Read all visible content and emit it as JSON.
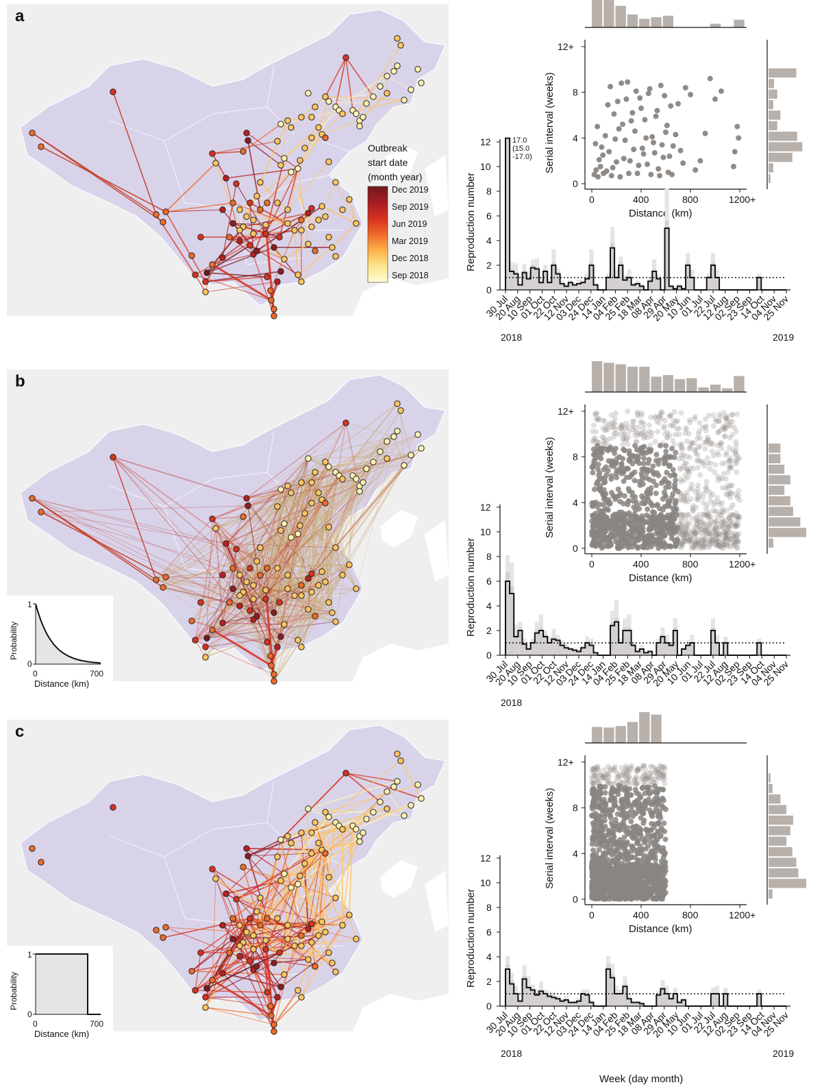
{
  "figure": {
    "bottom_xlabel": "Week (day month)",
    "colors": {
      "land": "#f0eff0",
      "china": "#d9d3ea",
      "histogram": "#b7b0ab",
      "scatter": "#8a8581",
      "step_line": "#111111"
    },
    "colorbar": {
      "title_lines": [
        "Outbreak",
        "start date",
        "(month year)"
      ],
      "labels": [
        "Dec 2019",
        "Sep 2019",
        "Jun 2019",
        "Mar 2019",
        "Dec 2018",
        "Sep 2018"
      ],
      "colors": [
        "#6e1a1f",
        "#a61c23",
        "#d7301f",
        "#ef6a28",
        "#fdb24a",
        "#fde68f",
        "#fffbd5"
      ]
    }
  },
  "chart_data": [
    {
      "panel": "a",
      "type": "map",
      "description_label": "a",
      "kernel": null,
      "link_density": "sparse"
    },
    {
      "panel": "a",
      "type": "scatter",
      "xlabel": "Distance (km)",
      "ylabel": "Serial interval (weeks)",
      "xticks": [
        "0",
        "400",
        "800",
        "1200+"
      ],
      "yticks": [
        "0",
        "4",
        "8",
        "12+"
      ],
      "xlim": [
        0,
        1250
      ],
      "ylim": [
        0,
        12
      ],
      "top_hist": [
        1.0,
        0.92,
        0.7,
        0.42,
        0.28,
        0.33,
        0.38,
        0.0,
        0.0,
        0.0,
        0.12,
        0.0,
        0.25
      ],
      "side_hist": [
        0.05,
        0.12,
        0.6,
        0.85,
        0.72,
        0.22,
        0.3,
        0.12,
        0.22,
        0.14,
        0.7,
        0.0,
        0.0
      ],
      "points": [
        [
          20,
          0.8
        ],
        [
          35,
          1.2
        ],
        [
          50,
          0.6
        ],
        [
          60,
          2.1
        ],
        [
          70,
          1.5
        ],
        [
          80,
          3.2
        ],
        [
          95,
          0.9
        ],
        [
          110,
          4.2
        ],
        [
          120,
          1.1
        ],
        [
          140,
          2.8
        ],
        [
          160,
          0.7
        ],
        [
          180,
          6.1
        ],
        [
          200,
          1.9
        ],
        [
          220,
          4.8
        ],
        [
          240,
          8.8
        ],
        [
          260,
          2.2
        ],
        [
          280,
          7.4
        ],
        [
          300,
          0.9
        ],
        [
          320,
          5.5
        ],
        [
          340,
          3.0
        ],
        [
          360,
          8.1
        ],
        [
          380,
          1.6
        ],
        [
          400,
          6.6
        ],
        [
          420,
          2.6
        ],
        [
          440,
          4.0
        ],
        [
          460,
          7.9
        ],
        [
          480,
          0.8
        ],
        [
          500,
          3.6
        ],
        [
          520,
          5.9
        ],
        [
          540,
          1.3
        ],
        [
          560,
          8.6
        ],
        [
          580,
          2.3
        ],
        [
          600,
          4.5
        ],
        [
          620,
          1.0
        ],
        [
          640,
          6.8
        ],
        [
          660,
          3.3
        ],
        [
          700,
          7.0
        ],
        [
          740,
          1.8
        ],
        [
          800,
          7.8
        ],
        [
          880,
          2.0
        ],
        [
          920,
          4.4
        ],
        [
          960,
          9.2
        ],
        [
          1000,
          7.4
        ],
        [
          1160,
          2.8
        ],
        [
          1190,
          4.0
        ],
        [
          30,
          3.5
        ],
        [
          45,
          5.0
        ],
        [
          90,
          2.5
        ],
        [
          130,
          6.9
        ],
        [
          150,
          8.5
        ],
        [
          170,
          1.4
        ],
        [
          190,
          3.9
        ],
        [
          210,
          7.2
        ],
        [
          230,
          0.6
        ],
        [
          250,
          5.2
        ],
        [
          270,
          3.8
        ],
        [
          290,
          8.9
        ],
        [
          310,
          2.0
        ],
        [
          330,
          6.2
        ],
        [
          350,
          4.6
        ],
        [
          370,
          0.9
        ],
        [
          390,
          7.5
        ],
        [
          410,
          3.1
        ],
        [
          430,
          5.6
        ],
        [
          450,
          1.7
        ],
        [
          470,
          8.3
        ],
        [
          490,
          4.1
        ],
        [
          510,
          2.7
        ],
        [
          530,
          6.4
        ],
        [
          550,
          0.7
        ],
        [
          570,
          3.4
        ],
        [
          590,
          7.7
        ],
        [
          610,
          5.1
        ],
        [
          630,
          2.4
        ],
        [
          650,
          0.8
        ],
        [
          680,
          4.3
        ],
        [
          720,
          2.9
        ],
        [
          760,
          8.4
        ],
        [
          840,
          1.2
        ],
        [
          1050,
          8.1
        ],
        [
          1150,
          1.5
        ],
        [
          1180,
          5.0
        ]
      ],
      "point_density": 1.0
    },
    {
      "panel": "a",
      "type": "step",
      "xlabel": "",
      "ylabel": "Reproduction number",
      "yticks": [
        "0",
        "2",
        "4",
        "6",
        "8",
        "10",
        "12"
      ],
      "ylim": [
        0,
        12.5
      ],
      "reference_line": 1,
      "annotation_lines": [
        "17.0",
        "(15.0",
        "-17.0)"
      ],
      "xtick_labels": [
        "30 Jul",
        "20 Aug",
        "10 Sep",
        "01 Oct",
        "22 Oct",
        "12 Nov",
        "03 Dec",
        "24 Dec",
        "14 Jan",
        "04 Feb",
        "25 Feb",
        "18 Mar",
        "08 Apr",
        "29 Apr",
        "20 May",
        "10 Jun",
        "01 Jul",
        "22 Jul",
        "12 Aug",
        "02 Sep",
        "23 Sep",
        "14 Oct",
        "04 Nov",
        "25 Nov"
      ],
      "year_labels": [
        "2018",
        "2019"
      ],
      "values": [
        12.5,
        1.5,
        1.3,
        0.4,
        1.4,
        0.9,
        1.8,
        1.7,
        0.6,
        1.5,
        0.6,
        2.0,
        1.3,
        0.5,
        0.3,
        0.6,
        0.4,
        0.5,
        0.6,
        0.9,
        2.0,
        0.4,
        0,
        0,
        1.0,
        3.4,
        1.0,
        2.0,
        0.8,
        1.0,
        0.4,
        0.5,
        0.3,
        0,
        0.7,
        1.5,
        0.9,
        0,
        5.0,
        0.3,
        0.1,
        0.3,
        0.1,
        2.0,
        1.0,
        0,
        0,
        0,
        1.0,
        2.0,
        1.0,
        0,
        0,
        0,
        0,
        0,
        0,
        0,
        0,
        0,
        1.0,
        0,
        0,
        0,
        0,
        0,
        0
      ]
    },
    {
      "panel": "b",
      "type": "map",
      "description_label": "b",
      "kernel": "exponential",
      "link_density": "dense"
    },
    {
      "panel": "b",
      "type": "scatter",
      "xlabel": "Distance (km)",
      "ylabel": "Serial interval (weeks)",
      "xticks": [
        "0",
        "400",
        "800",
        "1200+"
      ],
      "yticks": [
        "0",
        "4",
        "8",
        "12+"
      ],
      "xlim": [
        0,
        1250
      ],
      "ylim": [
        0,
        12
      ],
      "top_hist": [
        1.0,
        0.95,
        0.9,
        0.82,
        0.82,
        0.5,
        0.55,
        0.42,
        0.45,
        0.15,
        0.24,
        0.12,
        0.52
      ],
      "side_hist": [
        0.12,
        0.95,
        0.8,
        0.62,
        0.55,
        0.4,
        0.55,
        0.4,
        0.3,
        0.3,
        0.0,
        0.0,
        0.0
      ]
    },
    {
      "panel": "b",
      "type": "step",
      "xlabel": "",
      "ylabel": "Reproduction number",
      "yticks": [
        "0",
        "2",
        "4",
        "6",
        "8",
        "10",
        "12"
      ],
      "ylim": [
        0,
        12.5
      ],
      "reference_line": 1,
      "xtick_labels": [
        "30 Jul",
        "20 Aug",
        "10 Sep",
        "01 Oct",
        "22 Oct",
        "12 Nov",
        "03 Dec",
        "24 Dec",
        "14 Jan",
        "04 Feb",
        "25 Feb",
        "18 Mar",
        "08 Apr",
        "29 Apr",
        "20 May",
        "10 Jun",
        "01 Jul",
        "22 Jul",
        "12 Aug",
        "02 Sep",
        "23 Sep",
        "14 Oct",
        "04 Nov",
        "25 Nov"
      ],
      "year_labels": [
        "2018"
      ],
      "values": [
        6.0,
        5.0,
        1.5,
        2.0,
        0.9,
        0.5,
        1.0,
        1.8,
        2.0,
        1.5,
        1.0,
        1.3,
        1.2,
        0.8,
        0.6,
        0.5,
        0.4,
        0.3,
        0.6,
        1.0,
        0.8,
        0.2,
        0,
        0,
        0,
        2.4,
        2.7,
        1.0,
        2.0,
        2.0,
        0.8,
        0.3,
        0.5,
        0.2,
        0.3,
        0,
        1.0,
        1.5,
        1.0,
        0.8,
        2.0,
        0,
        0.5,
        0.8,
        1.0,
        0,
        0,
        0,
        0,
        2.0,
        1.0,
        0,
        1.0,
        0,
        0,
        0,
        0,
        0,
        0,
        0,
        1.0,
        0,
        0,
        0,
        0,
        0,
        0
      ]
    },
    {
      "panel": "c",
      "type": "map",
      "description_label": "c",
      "kernel": "step",
      "link_density": "medium"
    },
    {
      "panel": "c",
      "type": "scatter",
      "xlabel": "Distance (km)",
      "ylabel": "Serial interval (weeks)",
      "xticks": [
        "0",
        "400",
        "800",
        "1200+"
      ],
      "yticks": [
        "0",
        "4",
        "8",
        "12+"
      ],
      "xlim": [
        0,
        1250
      ],
      "ylim": [
        0,
        12
      ],
      "top_hist": [
        0.52,
        0.5,
        0.55,
        0.68,
        1.0,
        0.92
      ],
      "side_hist": [
        0.1,
        0.95,
        0.75,
        0.7,
        0.6,
        0.45,
        0.55,
        0.62,
        0.45,
        0.3,
        0.1,
        0.05,
        0.0
      ]
    },
    {
      "panel": "c",
      "type": "step",
      "xlabel": "Week (day month)",
      "ylabel": "Reproduction number",
      "yticks": [
        "0",
        "2",
        "4",
        "6",
        "8",
        "10",
        "12"
      ],
      "ylim": [
        0,
        12.5
      ],
      "reference_line": 1,
      "xtick_labels": [
        "30 Jul",
        "20 Aug",
        "10 Sep",
        "01 Oct",
        "22 Oct",
        "12 Nov",
        "03 Dec",
        "24 Dec",
        "14 Jan",
        "04 Feb",
        "25 Feb",
        "18 Mar",
        "08 Apr",
        "29 Apr",
        "20 May",
        "10 Jun",
        "01 Jul",
        "22 Jul",
        "12 Aug",
        "02 Sep",
        "23 Sep",
        "14 Oct",
        "04 Nov",
        "25 Nov"
      ],
      "year_labels": [
        "2018",
        "2019"
      ],
      "values": [
        3.0,
        1.8,
        1.0,
        0.4,
        2.2,
        1.5,
        1.3,
        0.9,
        1.2,
        1.0,
        0.8,
        0.7,
        0.6,
        0.4,
        0.5,
        0.3,
        0.3,
        0.4,
        1.0,
        0.9,
        0.3,
        0,
        0,
        0,
        3.0,
        2.3,
        1.0,
        1.0,
        1.6,
        0.6,
        0.3,
        0.3,
        0.2,
        0,
        0,
        0,
        0.9,
        1.4,
        1.0,
        0.6,
        1.0,
        0.3,
        0.5,
        0,
        0,
        0,
        0,
        0,
        0,
        1.0,
        1.0,
        0,
        1.0,
        0,
        0,
        0,
        0,
        0,
        0,
        0,
        1.0,
        0,
        0,
        0,
        0,
        0,
        0
      ]
    }
  ],
  "kernel_insets": [
    {
      "panel": "b",
      "xlabel": "Distance (km)",
      "ylabel": "Probability",
      "xticks": [
        "0",
        "700"
      ],
      "yticks": [
        "0",
        "1"
      ],
      "shape": "exponential"
    },
    {
      "panel": "c",
      "xlabel": "Distance (km)",
      "ylabel": "Probability",
      "xticks": [
        "0",
        "700"
      ],
      "yticks": [
        "0",
        "1"
      ],
      "shape": "step"
    }
  ]
}
